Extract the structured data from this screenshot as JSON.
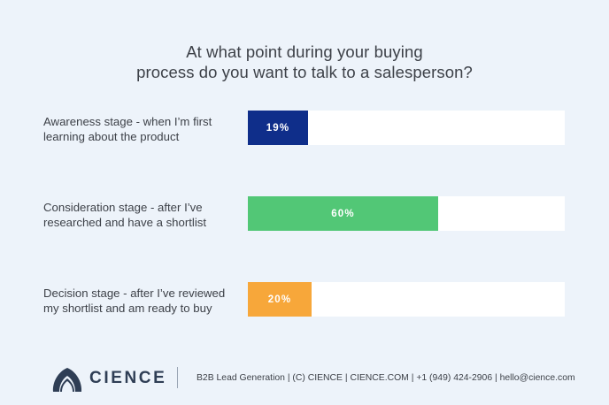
{
  "title": {
    "line1": "At what point during your buying",
    "line2": "process do you want to talk to a salesperson?"
  },
  "chart_data": {
    "type": "bar",
    "orientation": "horizontal",
    "title": "At what point during your buying process do you want to talk to a salesperson?",
    "categories": [
      "Awareness stage - when I’m first learning about the product",
      "Consideration stage - after I’ve researched and have a shortlist",
      "Decision stage - after I’ve reviewed my shortlist and am ready to buy"
    ],
    "values": [
      19,
      60,
      20
    ],
    "value_labels": [
      "19%",
      "60%",
      "20%"
    ],
    "xlim": [
      0,
      100
    ],
    "bar_colors": [
      "#0f2e8a",
      "#52c776",
      "#f7a73a"
    ],
    "grid": false,
    "legend": "none"
  },
  "rows": [
    {
      "label_line1": "Awareness stage - when I’m first",
      "label_line2": "learning about the product"
    },
    {
      "label_line1": "Consideration stage - after I’ve",
      "label_line2": "researched and have a shortlist"
    },
    {
      "label_line1": "Decision stage - after I’ve reviewed",
      "label_line2": "my shortlist and am ready to buy"
    }
  ],
  "footer": {
    "brand": "CIENCE",
    "logo_icon": "cience-logo-icon",
    "info": "B2B Lead Generation | (C) CIENCE | CIENCE.COM | +1 (949) 424-2906 | hello@cience.com"
  },
  "colors": {
    "background": "#edf3fa",
    "track": "#ffffff",
    "brand_blue": "#2f3e55"
  }
}
